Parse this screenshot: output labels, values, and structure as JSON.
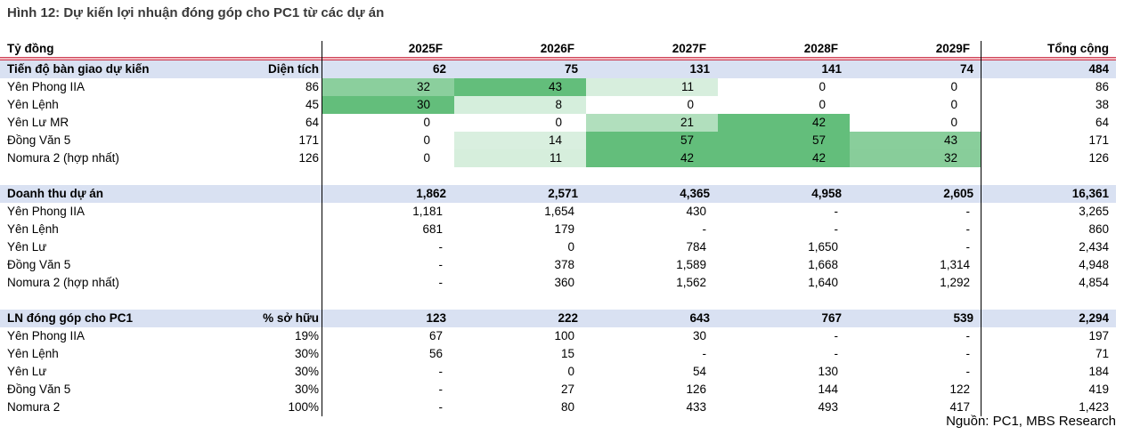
{
  "title": "Hình 12: Dự kiến lợi nhuận đóng góp cho PC1 từ các dự án",
  "source": "Nguồn: PC1, MBS Research",
  "colors": {
    "section_header_bg": "#D9E1F2",
    "heatmap_max_green": "#63BE7B",
    "heatmap_min": "#FFFFFF",
    "divider_red_dark": "#CE4257",
    "divider_red_light": "#F2B6BE",
    "column_rule": "#000000",
    "title_text": "#3A3A3A"
  },
  "chart_data": {
    "type": "table",
    "unit_label": "Tỷ đồng",
    "year_headers": [
      "2025F",
      "2026F",
      "2027F",
      "2028F",
      "2029F"
    ],
    "total_header": "Tổng cộng",
    "sections": [
      {
        "name": "Tiến độ bàn giao dự kiến",
        "metric_label": "Diện tích",
        "heatmap": true,
        "totals_row": {
          "values": [
            "62",
            "75",
            "131",
            "141",
            "74"
          ],
          "total": "484"
        },
        "rows": [
          {
            "label": "Yên Phong IIA",
            "metric": "86",
            "values": [
              32,
              43,
              11,
              0,
              0
            ],
            "total": "86"
          },
          {
            "label": "Yên Lệnh",
            "metric": "45",
            "values": [
              30,
              8,
              0,
              0,
              0
            ],
            "total": "38"
          },
          {
            "label": "Yên Lư MR",
            "metric": "64",
            "values": [
              0,
              0,
              21,
              42,
              0
            ],
            "total": "64"
          },
          {
            "label": "Đồng Văn 5",
            "metric": "171",
            "values": [
              0,
              14,
              57,
              57,
              43
            ],
            "total": "171"
          },
          {
            "label": "Nomura 2 (hợp nhất)",
            "metric": "126",
            "values": [
              0,
              11,
              42,
              42,
              32
            ],
            "total": "126"
          }
        ]
      },
      {
        "name": "Doanh thu dự án",
        "metric_label": "",
        "heatmap": false,
        "totals_row": {
          "values": [
            "1,862",
            "2,571",
            "4,365",
            "4,958",
            "2,605"
          ],
          "total": "16,361"
        },
        "rows": [
          {
            "label": "Yên Phong IIA",
            "metric": "",
            "values": [
              "1,181",
              "1,654",
              "430",
              "-",
              "-"
            ],
            "total": "3,265"
          },
          {
            "label": "Yên Lệnh",
            "metric": "",
            "values": [
              "681",
              "179",
              "-",
              "-",
              "-"
            ],
            "total": "860"
          },
          {
            "label": "Yên Lư",
            "metric": "",
            "values": [
              "-",
              "0",
              "784",
              "1,650",
              "-"
            ],
            "total": "2,434"
          },
          {
            "label": "Đồng Văn 5",
            "metric": "",
            "values": [
              "-",
              "378",
              "1,589",
              "1,668",
              "1,314"
            ],
            "total": "4,948"
          },
          {
            "label": "Nomura 2 (hợp nhất)",
            "metric": "",
            "values": [
              "-",
              "360",
              "1,562",
              "1,640",
              "1,292"
            ],
            "total": "4,854"
          }
        ]
      },
      {
        "name": "LN đóng góp cho PC1",
        "metric_label": "% sở hữu",
        "heatmap": false,
        "totals_row": {
          "values": [
            "123",
            "222",
            "643",
            "767",
            "539"
          ],
          "total": "2,294"
        },
        "rows": [
          {
            "label": "Yên Phong IIA",
            "metric": "19%",
            "values": [
              "67",
              "100",
              "30",
              "-",
              "-"
            ],
            "total": "197"
          },
          {
            "label": "Yên Lệnh",
            "metric": "30%",
            "values": [
              "56",
              "15",
              "-",
              "-",
              "-"
            ],
            "total": "71"
          },
          {
            "label": "Yên Lư",
            "metric": "30%",
            "values": [
              "-",
              "0",
              "54",
              "130",
              "-"
            ],
            "total": "184"
          },
          {
            "label": "Đồng Văn 5",
            "metric": "30%",
            "values": [
              "-",
              "27",
              "126",
              "144",
              "122"
            ],
            "total": "419"
          },
          {
            "label": "Nomura 2",
            "metric": "100%",
            "values": [
              "-",
              "80",
              "433",
              "493",
              "417"
            ],
            "total": "1,423"
          }
        ]
      }
    ]
  }
}
